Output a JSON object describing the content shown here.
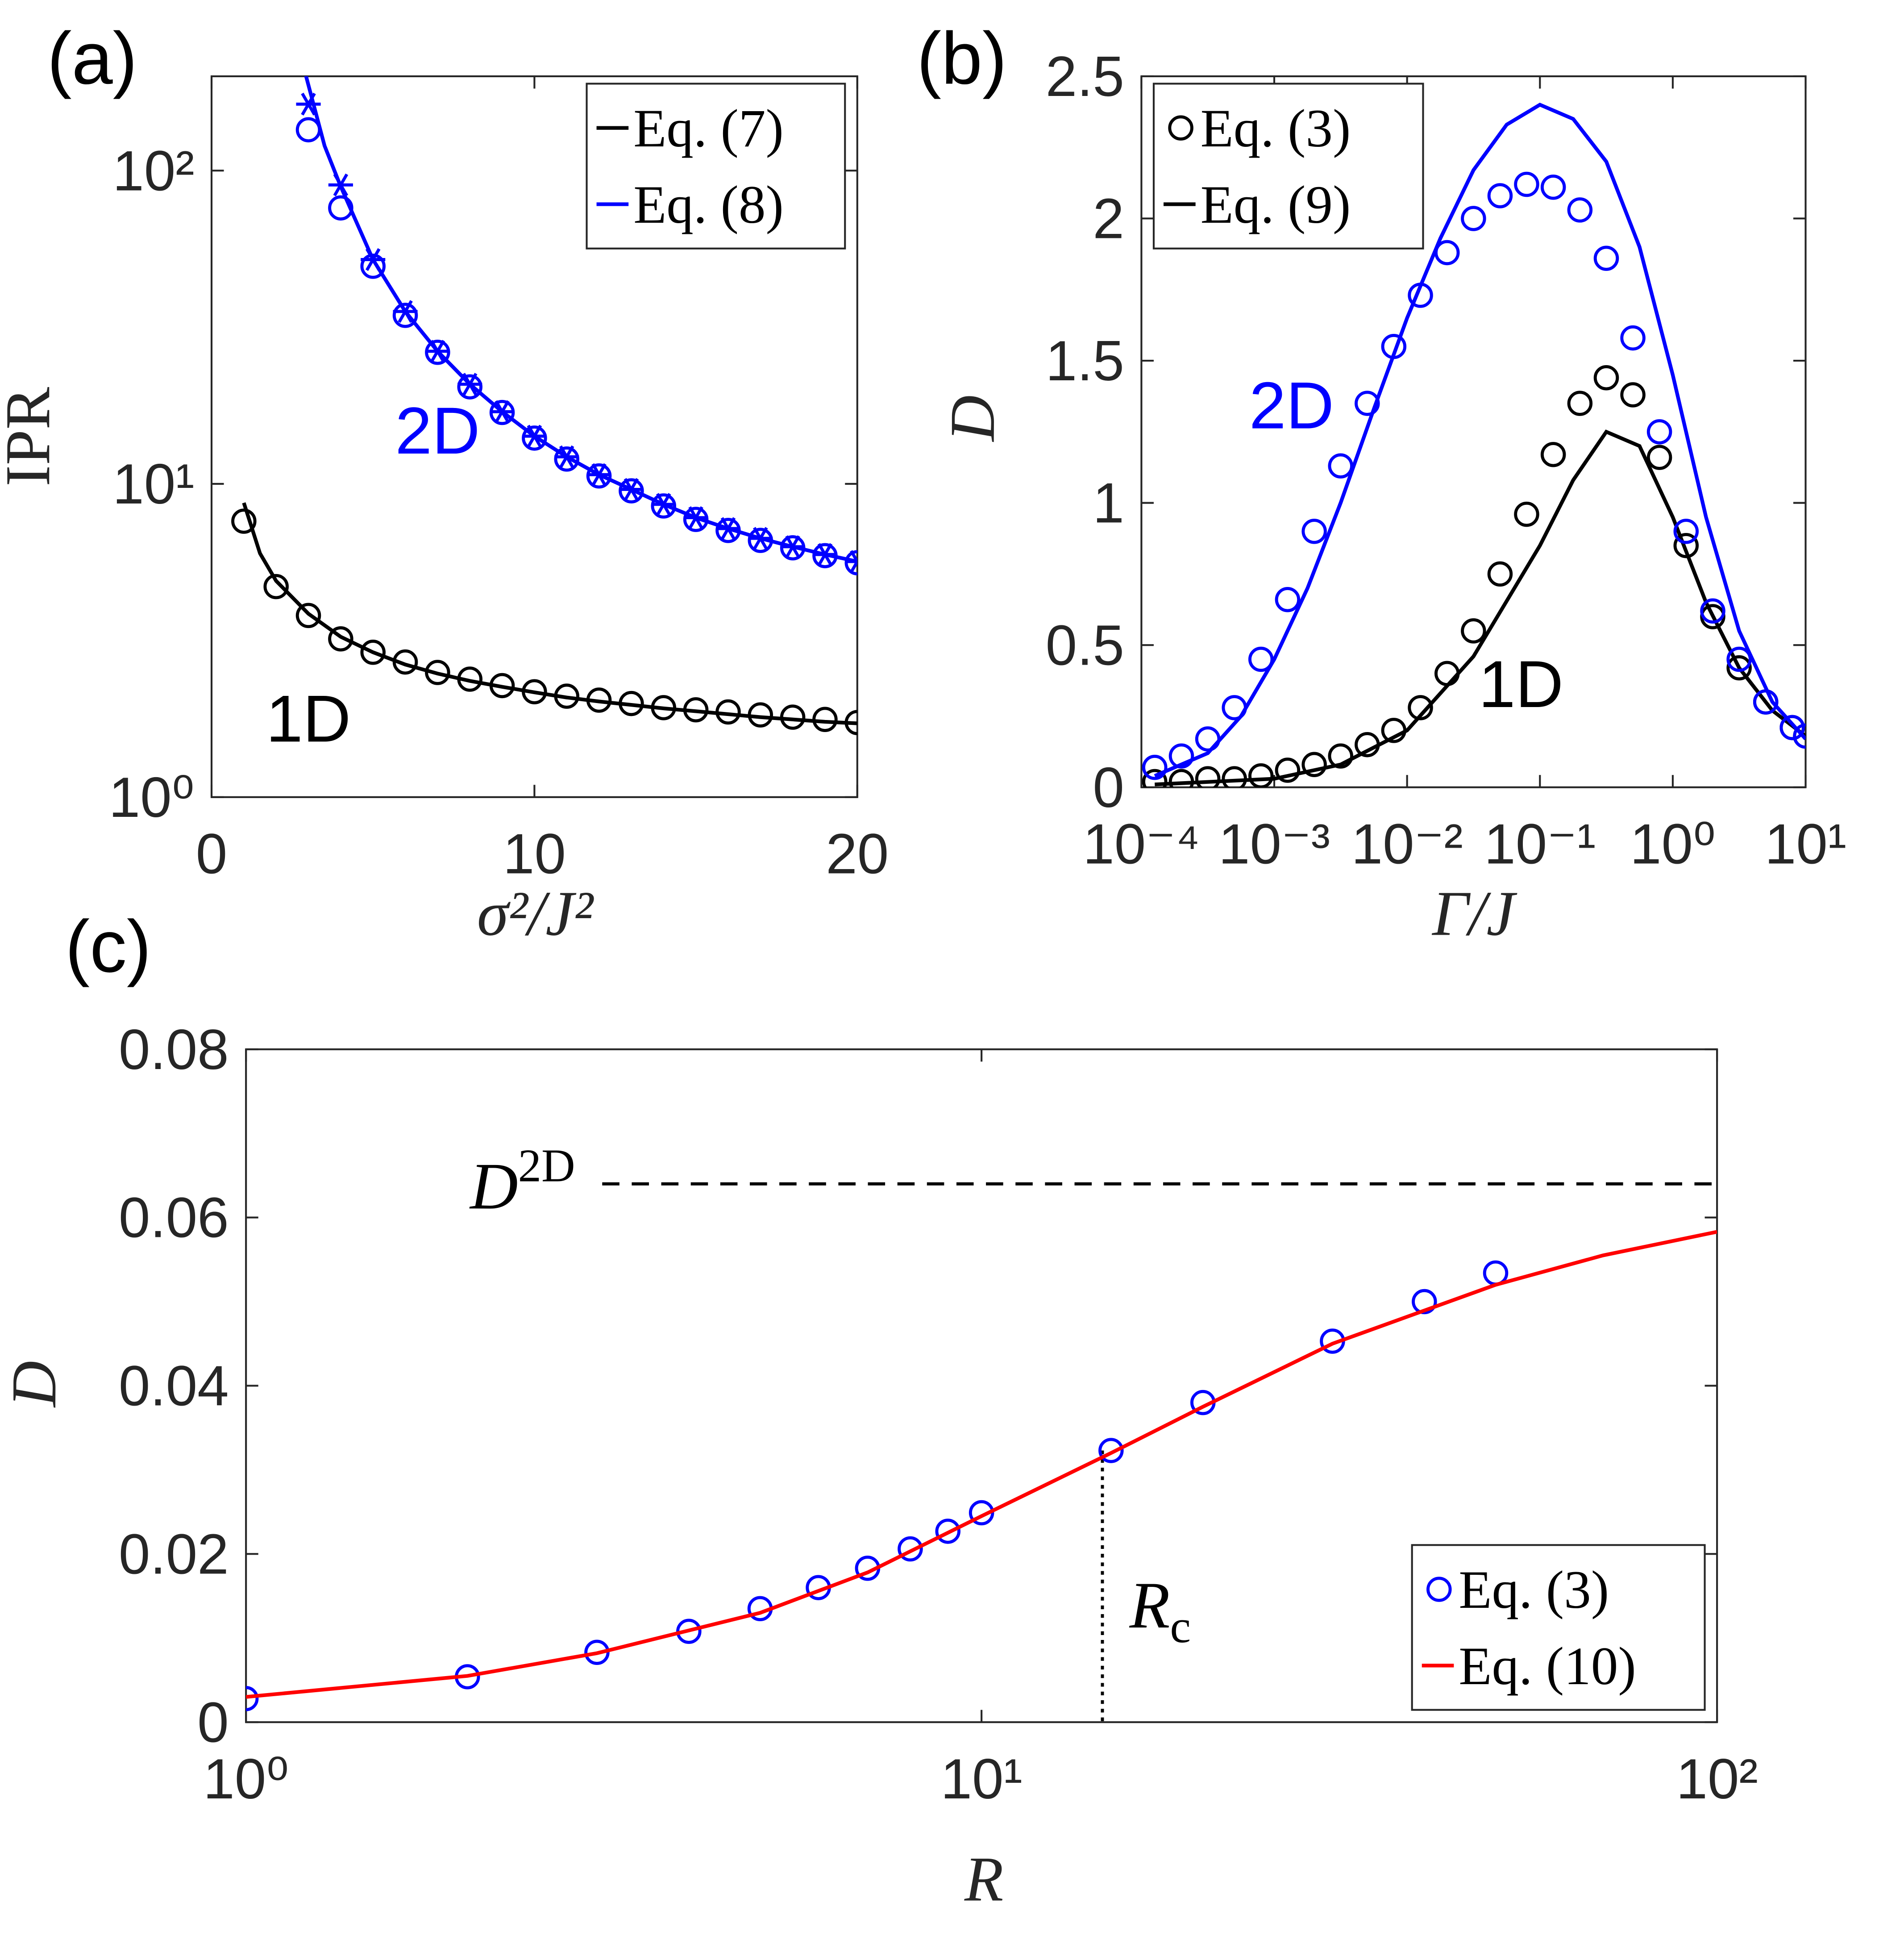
{
  "chart_data": [
    {
      "type": "line",
      "label": "(a)",
      "xlabel": "σ²/J²",
      "ylabel": "IPR",
      "xlim": [
        0,
        20
      ],
      "xticks": [
        0,
        10,
        20
      ],
      "ylim": [
        1,
        200
      ],
      "yscale": "log",
      "yticks": [
        {
          "value": 1,
          "label": "10⁰"
        },
        {
          "value": 10,
          "label": "10¹"
        },
        {
          "value": 100,
          "label": "10²"
        }
      ],
      "legend": "upper right",
      "grid": false,
      "series": [
        {
          "name": "Eq. (7)",
          "type": "line",
          "color": "#000000",
          "x": [
            1,
            1.5,
            2,
            3,
            4,
            5,
            6,
            7,
            8,
            9,
            10,
            11,
            12,
            13,
            14,
            15,
            16,
            17,
            18,
            19,
            20
          ],
          "values": [
            8.7,
            6.0,
            4.9,
            3.85,
            3.25,
            2.9,
            2.65,
            2.48,
            2.35,
            2.25,
            2.16,
            2.08,
            2.02,
            1.97,
            1.92,
            1.88,
            1.84,
            1.8,
            1.77,
            1.74,
            1.72
          ]
        },
        {
          "name": "Eq. (8)",
          "type": "line",
          "color": "#0000ff",
          "x": [
            2.9,
            3.5,
            4,
            5,
            6,
            7,
            8,
            9,
            10,
            11,
            12,
            13,
            14,
            15,
            16,
            17,
            18,
            19,
            20
          ],
          "values": [
            205,
            120,
            89,
            52,
            35.5,
            26.5,
            20.8,
            17,
            14.2,
            12.2,
            10.7,
            9.6,
            8.6,
            7.8,
            7.2,
            6.7,
            6.3,
            5.95,
            5.65
          ]
        },
        {
          "type": "scatter",
          "marker": "o",
          "color": "#000000",
          "x": [
            1,
            2,
            3,
            4,
            5,
            6,
            7,
            8,
            9,
            10,
            11,
            12,
            13,
            14,
            15,
            16,
            17,
            18,
            19,
            20
          ],
          "values": [
            7.6,
            4.7,
            3.8,
            3.2,
            2.9,
            2.7,
            2.5,
            2.38,
            2.27,
            2.17,
            2.1,
            2.04,
            1.99,
            1.93,
            1.9,
            1.87,
            1.83,
            1.8,
            1.77,
            1.73
          ]
        },
        {
          "type": "scatter",
          "marker": "o",
          "color": "#0000ff",
          "x": [
            3,
            4,
            5,
            6,
            7,
            8,
            9,
            10,
            11,
            12,
            13,
            14,
            15,
            16,
            17,
            18,
            19,
            20
          ],
          "values": [
            135,
            76,
            49.5,
            34.5,
            26.3,
            20.4,
            16.9,
            14.0,
            12.0,
            10.6,
            9.5,
            8.5,
            7.7,
            7.1,
            6.6,
            6.25,
            5.9,
            5.6
          ]
        },
        {
          "type": "scatter",
          "marker": "*",
          "color": "#0000ff",
          "x": [
            3,
            4,
            5,
            6,
            7,
            8,
            9,
            10,
            11,
            12,
            13,
            14,
            15,
            16,
            17,
            18,
            19,
            20
          ],
          "values": [
            163,
            90,
            52,
            35.5,
            26.5,
            20.8,
            17,
            14.2,
            12.2,
            10.7,
            9.6,
            8.6,
            7.8,
            7.2,
            6.7,
            6.3,
            5.95,
            5.65
          ]
        }
      ],
      "annotations": [
        {
          "text": "2D",
          "x": 7.0,
          "y": 14.7,
          "color": "#0000ff"
        },
        {
          "text": "1D",
          "x": 3.0,
          "y": 1.77,
          "color": "#000000"
        }
      ]
    },
    {
      "type": "line",
      "label": "(b)",
      "xlabel": "Γ/J",
      "ylabel": "D",
      "xlim": [
        0.0001,
        10
      ],
      "xscale": "log",
      "xticks": [
        {
          "value": 0.0001,
          "label": "10⁻⁴"
        },
        {
          "value": 0.001,
          "label": "10⁻³"
        },
        {
          "value": 0.01,
          "label": "10⁻²"
        },
        {
          "value": 0.1,
          "label": "10⁻¹"
        },
        {
          "value": 1,
          "label": "10⁰"
        },
        {
          "value": 10,
          "label": "10¹"
        }
      ],
      "ylim": [
        0,
        2.5
      ],
      "yticks": [
        0,
        0.5,
        1,
        1.5,
        2,
        2.5
      ],
      "legend": "upper left",
      "grid": false,
      "series": [
        {
          "name": "Eq. (3)",
          "type": "scatter",
          "marker": "o",
          "color": "#000000",
          "x": [
            0.000126,
            0.0002,
            0.000316,
            0.000501,
            0.000794,
            0.00126,
            0.002,
            0.00316,
            0.00501,
            0.00794,
            0.0126,
            0.02,
            0.0316,
            0.0501,
            0.0794,
            0.126,
            0.2,
            0.316,
            0.501,
            0.794,
            1.26,
            2,
            3.16,
            5.01,
            7.94,
            10
          ],
          "values": [
            0.02,
            0.02,
            0.03,
            0.03,
            0.04,
            0.06,
            0.08,
            0.11,
            0.15,
            0.2,
            0.28,
            0.4,
            0.55,
            0.75,
            0.96,
            1.17,
            1.35,
            1.44,
            1.38,
            1.16,
            0.85,
            0.6,
            0.42,
            0.3,
            0.21,
            0.18
          ]
        },
        {
          "name": "Eq. (9)",
          "type": "line",
          "color": "#000000",
          "x": [
            0.000126,
            0.001,
            0.00316,
            0.01,
            0.0316,
            0.1,
            0.178,
            0.316,
            0.562,
            1,
            1.78,
            3.16,
            5.62,
            10
          ],
          "values": [
            0.01,
            0.03,
            0.08,
            0.2,
            0.46,
            0.85,
            1.08,
            1.25,
            1.2,
            0.95,
            0.65,
            0.42,
            0.27,
            0.18
          ]
        },
        {
          "type": "scatter",
          "marker": "o",
          "color": "#0000ff",
          "x": [
            0.000126,
            0.0002,
            0.000316,
            0.000501,
            0.000794,
            0.00126,
            0.002,
            0.00316,
            0.00501,
            0.00794,
            0.0126,
            0.02,
            0.0316,
            0.0501,
            0.0794,
            0.126,
            0.2,
            0.316,
            0.501,
            0.794,
            1.26,
            2,
            3.16,
            5.01,
            7.94,
            10
          ],
          "values": [
            0.07,
            0.11,
            0.17,
            0.28,
            0.45,
            0.66,
            0.9,
            1.13,
            1.35,
            1.55,
            1.73,
            1.88,
            2.0,
            2.08,
            2.12,
            2.11,
            2.03,
            1.86,
            1.58,
            1.25,
            0.9,
            0.62,
            0.45,
            0.3,
            0.21,
            0.18
          ]
        },
        {
          "type": "line",
          "color": "#0000ff",
          "x": [
            0.000126,
            0.000316,
            0.000562,
            0.001,
            0.00178,
            0.00316,
            0.00562,
            0.01,
            0.0178,
            0.0316,
            0.0562,
            0.1,
            0.178,
            0.316,
            0.562,
            1,
            1.78,
            3.16,
            5.62,
            10
          ],
          "values": [
            0.04,
            0.12,
            0.25,
            0.45,
            0.7,
            1.0,
            1.33,
            1.65,
            1.93,
            2.17,
            2.33,
            2.4,
            2.35,
            2.2,
            1.9,
            1.45,
            0.95,
            0.55,
            0.3,
            0.17
          ]
        }
      ],
      "annotations": [
        {
          "text": "2D",
          "x": 0.00135,
          "y": 1.34,
          "color": "#0000ff"
        },
        {
          "text": "1D",
          "x": 0.072,
          "y": 0.36,
          "color": "#000000"
        }
      ]
    },
    {
      "type": "line",
      "label": "(c)",
      "xlabel": "R",
      "ylabel": "D",
      "xlim": [
        1,
        100
      ],
      "xscale": "log",
      "xticks": [
        {
          "value": 1,
          "label": "10⁰"
        },
        {
          "value": 10,
          "label": "10¹"
        },
        {
          "value": 100,
          "label": "10²"
        }
      ],
      "ylim": [
        0,
        0.08
      ],
      "yticks": [
        0,
        0.02,
        0.04,
        0.06,
        0.08
      ],
      "legend": "lower right",
      "grid": false,
      "series": [
        {
          "name": "Eq. (3)",
          "type": "scatter",
          "marker": "o",
          "color": "#0000ff",
          "x": [
            1,
            2,
            3,
            4,
            5,
            6,
            7,
            8,
            9,
            10,
            15,
            20,
            30,
            40,
            50
          ],
          "values": [
            0.0028,
            0.0054,
            0.0083,
            0.0108,
            0.0135,
            0.016,
            0.0183,
            0.0206,
            0.0227,
            0.0249,
            0.0323,
            0.038,
            0.0453,
            0.05,
            0.0534
          ]
        },
        {
          "name": "Eq. (10)",
          "type": "line",
          "color": "#ff0000",
          "x": [
            1,
            2,
            3,
            5,
            7,
            10,
            15,
            20,
            30,
            50,
            70,
            100
          ],
          "values": [
            0.003,
            0.0055,
            0.0082,
            0.013,
            0.0178,
            0.0245,
            0.032,
            0.0375,
            0.045,
            0.052,
            0.0555,
            0.0583
          ]
        }
      ],
      "hlines": [
        {
          "y": 0.064,
          "xmin": 3.05,
          "label": "D",
          "label_sup": "2D",
          "color": "#000000"
        }
      ],
      "vlines": [
        {
          "x": 14.6,
          "ymax": 0.0323,
          "label": "R",
          "label_sub": "c",
          "color": "#000000"
        }
      ]
    }
  ]
}
